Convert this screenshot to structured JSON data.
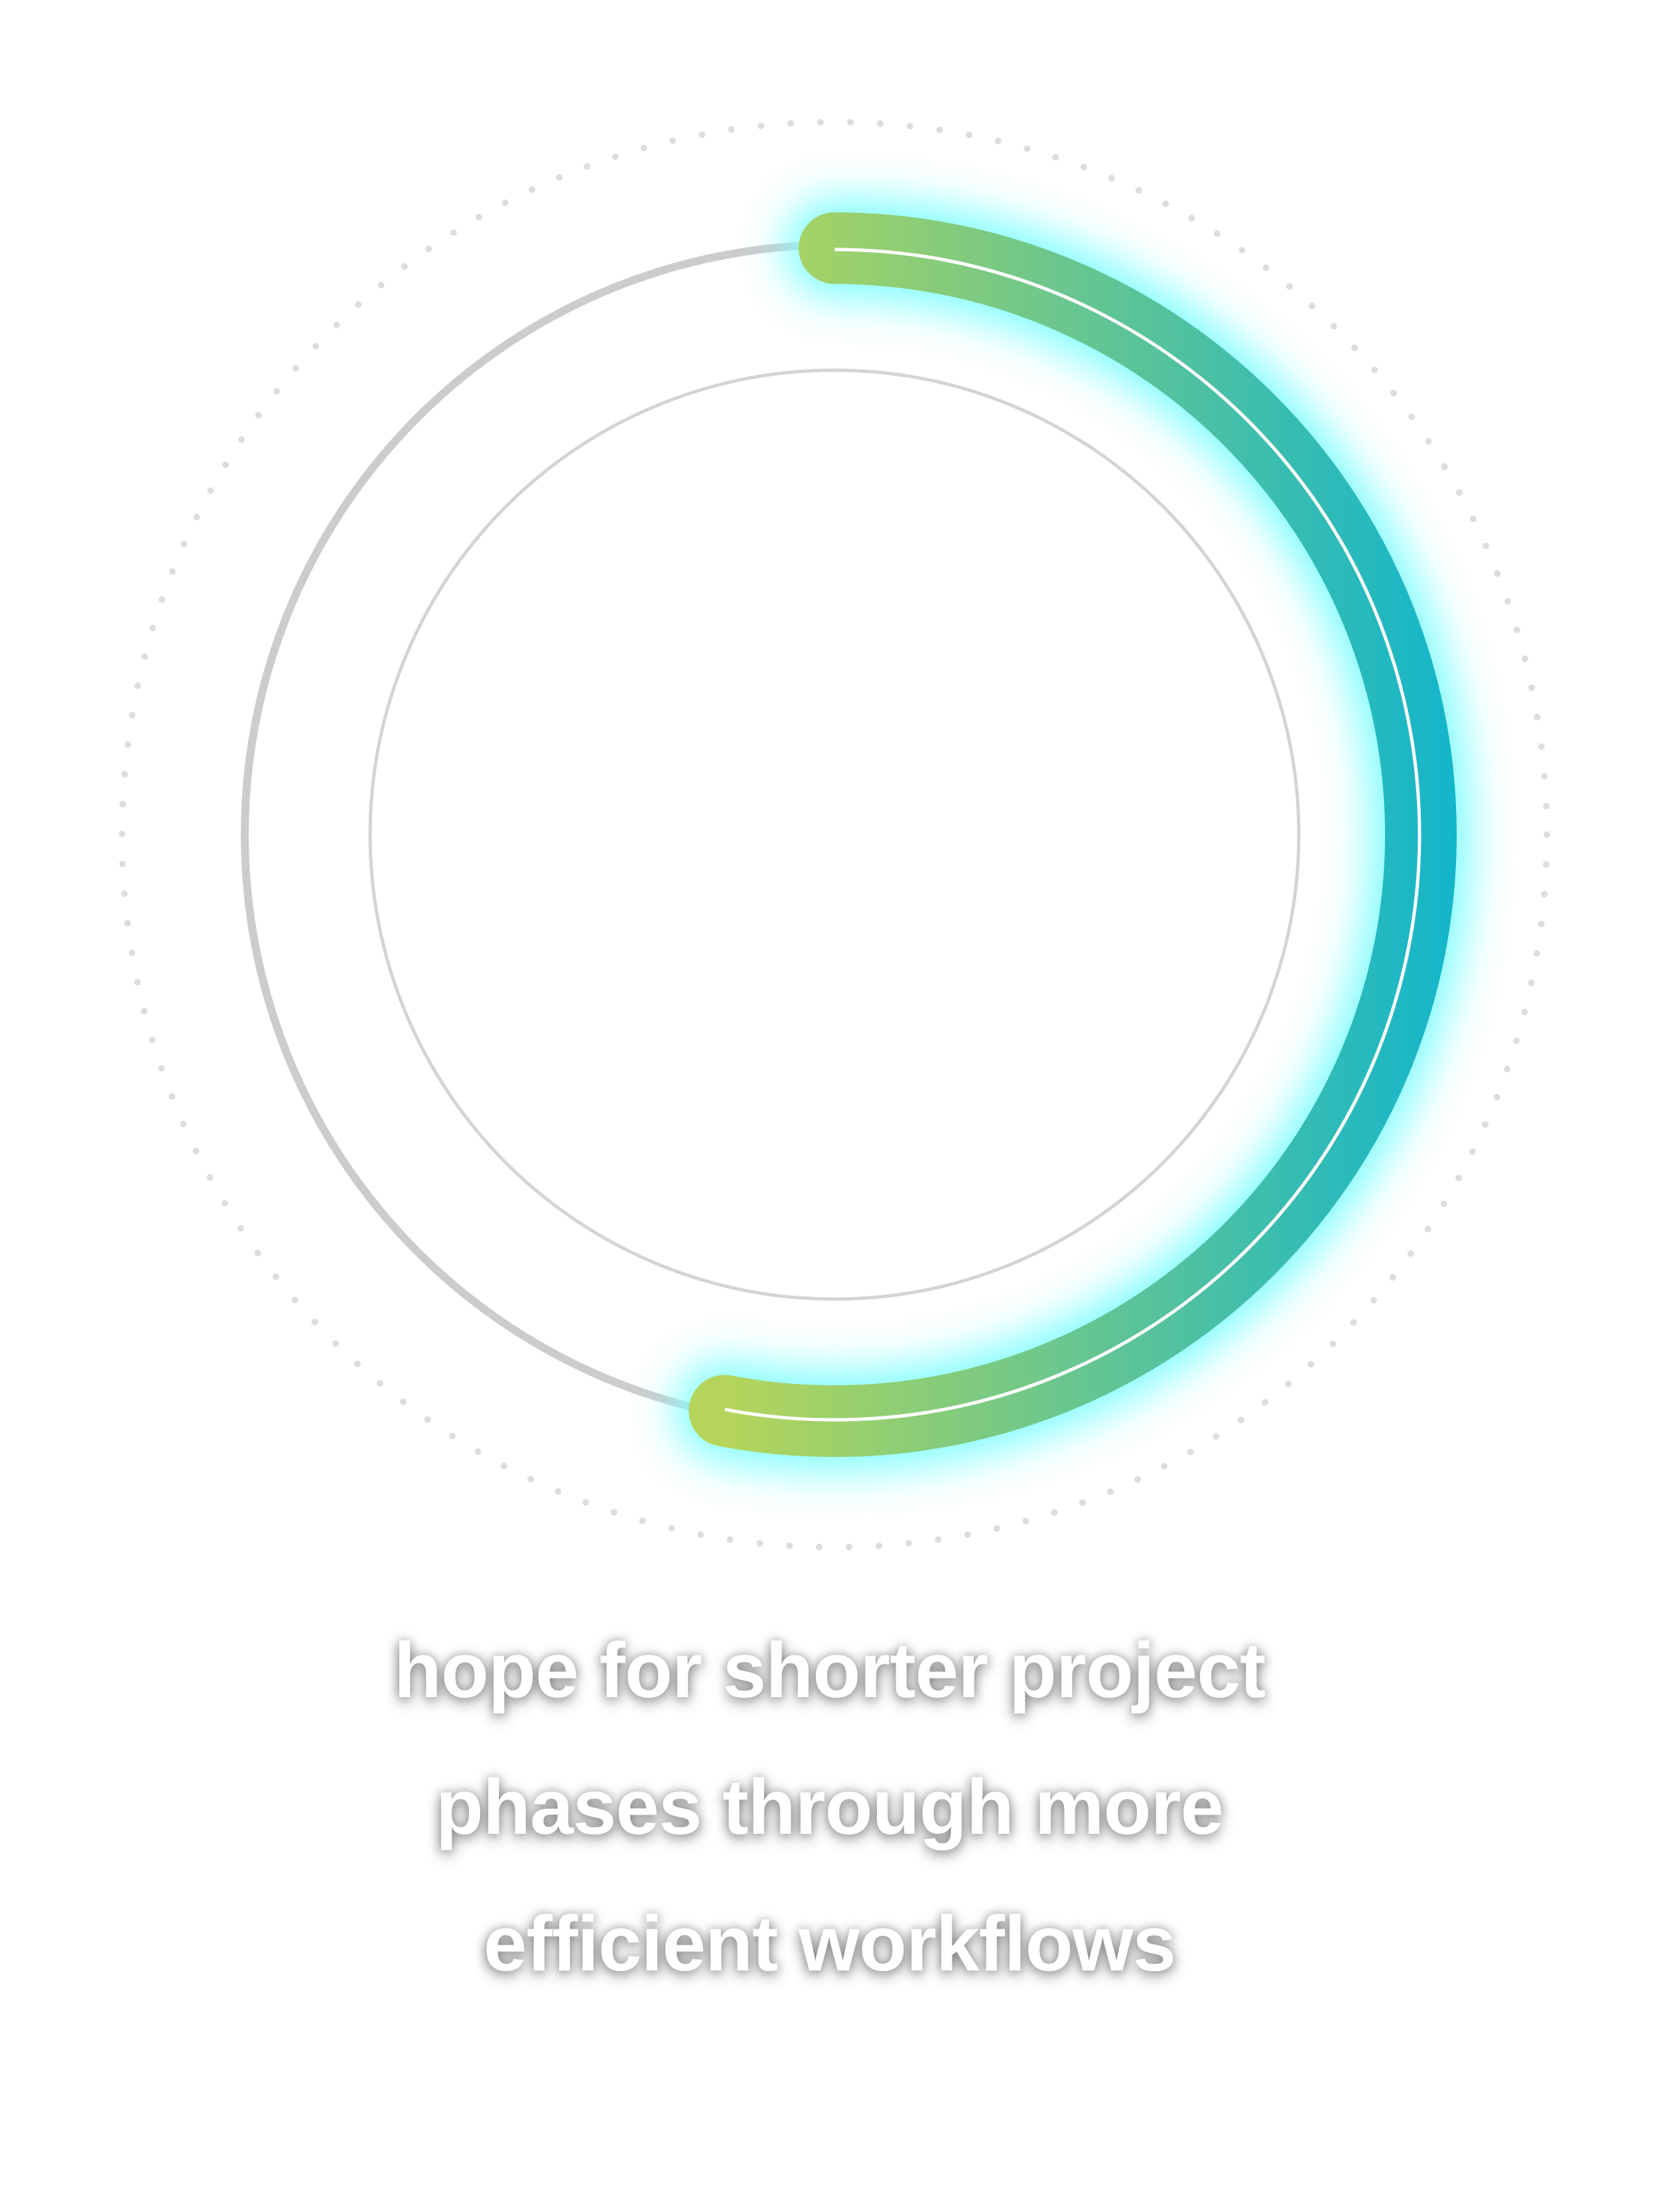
{
  "progress": {
    "fraction": 0.53,
    "colors": {
      "gradient_start": "#b5d55a",
      "gradient_end": "#12b5cc",
      "glow": "#7ffcff",
      "track": "#cccccc",
      "inner_circle": "#d4d4d4",
      "dots": "#dddddd"
    }
  },
  "caption": {
    "lines": [
      "hope for shorter project",
      "phases through more",
      "efficient workflows"
    ]
  }
}
